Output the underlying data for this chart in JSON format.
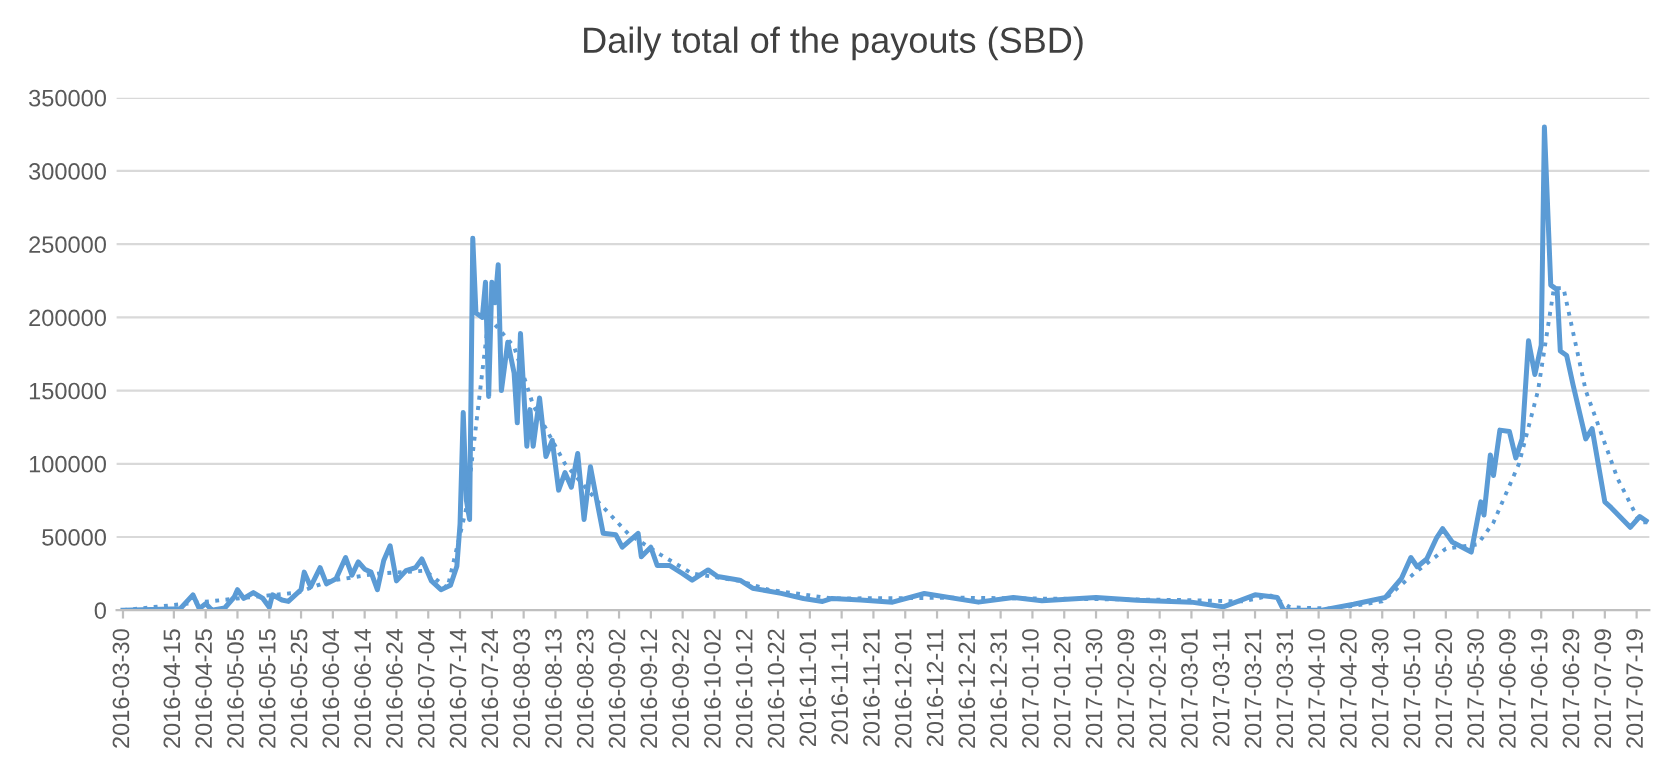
{
  "chart_data": {
    "type": "line",
    "title": "Daily total of the payouts (SBD)",
    "xlim": [
      "2016-03-28",
      "2017-07-23"
    ],
    "ylim": [
      0,
      350000
    ],
    "yticks": [
      0,
      50000,
      100000,
      150000,
      200000,
      250000,
      300000,
      350000
    ],
    "xticks": [
      "2016-03-30",
      "2016-04-15",
      "2016-04-25",
      "2016-05-05",
      "2016-05-15",
      "2016-05-25",
      "2016-06-04",
      "2016-06-14",
      "2016-06-24",
      "2016-07-04",
      "2016-07-14",
      "2016-07-24",
      "2016-08-03",
      "2016-08-13",
      "2016-08-23",
      "2016-09-02",
      "2016-09-12",
      "2016-09-22",
      "2016-10-02",
      "2016-10-12",
      "2016-10-22",
      "2016-11-01",
      "2016-11-11",
      "2016-11-21",
      "2016-12-01",
      "2016-12-11",
      "2016-12-21",
      "2016-12-31",
      "2017-01-10",
      "2017-01-20",
      "2017-01-30",
      "2017-02-09",
      "2017-02-19",
      "2017-03-01",
      "2017-03-11",
      "2017-03-21",
      "2017-03-31",
      "2017-04-10",
      "2017-04-20",
      "2017-04-30",
      "2017-05-10",
      "2017-05-20",
      "2017-05-30",
      "2017-06-09",
      "2017-06-19",
      "2017-06-29",
      "2017-07-09",
      "2017-07-19"
    ],
    "grid": "y",
    "legend": false,
    "series": [
      {
        "color": "#5b9bd5",
        "line_style": "solid",
        "x": [
          "2016-03-30",
          "2016-04-17",
          "2016-04-21",
          "2016-04-23",
          "2016-04-25",
          "2016-04-27",
          "2016-05-01",
          "2016-05-04",
          "2016-05-05",
          "2016-05-07",
          "2016-05-10",
          "2016-05-13",
          "2016-05-15",
          "2016-05-16",
          "2016-05-19",
          "2016-05-21",
          "2016-05-25",
          "2016-05-26",
          "2016-05-28",
          "2016-05-31",
          "2016-06-02",
          "2016-06-05",
          "2016-06-08",
          "2016-06-10",
          "2016-06-12",
          "2016-06-14",
          "2016-06-16",
          "2016-06-18",
          "2016-06-20",
          "2016-06-22",
          "2016-06-24",
          "2016-06-27",
          "2016-06-30",
          "2016-07-02",
          "2016-07-05",
          "2016-07-08",
          "2016-07-11",
          "2016-07-13",
          "2016-07-14",
          "2016-07-15",
          "2016-07-16",
          "2016-07-17",
          "2016-07-18",
          "2016-07-19",
          "2016-07-21",
          "2016-07-22",
          "2016-07-23",
          "2016-07-24",
          "2016-07-25",
          "2016-07-26",
          "2016-07-27",
          "2016-07-29",
          "2016-07-31",
          "2016-08-01",
          "2016-08-02",
          "2016-08-04",
          "2016-08-05",
          "2016-08-06",
          "2016-08-08",
          "2016-08-10",
          "2016-08-12",
          "2016-08-14",
          "2016-08-16",
          "2016-08-18",
          "2016-08-20",
          "2016-08-22",
          "2016-08-24",
          "2016-08-26",
          "2016-08-28",
          "2016-09-01",
          "2016-09-03",
          "2016-09-08",
          "2016-09-09",
          "2016-09-12",
          "2016-09-14",
          "2016-09-18",
          "2016-09-22",
          "2016-09-25",
          "2016-09-30",
          "2016-10-03",
          "2016-10-10",
          "2016-10-14",
          "2016-10-18",
          "2016-10-23",
          "2016-10-30",
          "2016-11-05",
          "2016-11-08",
          "2016-11-17",
          "2016-11-27",
          "2016-12-07",
          "2016-12-24",
          "2017-01-04",
          "2017-01-13",
          "2017-01-30",
          "2017-02-12",
          "2017-03-01",
          "2017-03-11",
          "2017-03-21",
          "2017-03-28",
          "2017-03-30",
          "2017-04-11",
          "2017-04-21",
          "2017-05-01",
          "2017-05-06",
          "2017-05-09",
          "2017-05-11",
          "2017-05-14",
          "2017-05-17",
          "2017-05-19",
          "2017-05-22",
          "2017-05-28",
          "2017-05-31",
          "2017-06-01",
          "2017-06-03",
          "2017-06-04",
          "2017-06-06",
          "2017-06-09",
          "2017-06-11",
          "2017-06-13",
          "2017-06-15",
          "2017-06-17",
          "2017-06-19",
          "2017-06-20",
          "2017-06-22",
          "2017-06-24",
          "2017-06-25",
          "2017-06-27",
          "2017-06-29",
          "2017-07-03",
          "2017-07-05",
          "2017-07-07",
          "2017-07-09",
          "2017-07-11",
          "2017-07-17",
          "2017-07-20",
          "2017-07-22"
        ],
        "values": [
          0,
          1000,
          10500,
          1000,
          4500,
          0,
          1500,
          9000,
          14000,
          8000,
          12000,
          8000,
          2000,
          10500,
          7000,
          6000,
          14000,
          26000,
          16000,
          29000,
          18000,
          21500,
          36000,
          24000,
          33000,
          28000,
          26000,
          14000,
          34000,
          44000,
          20000,
          27000,
          29000,
          35000,
          20000,
          14000,
          17000,
          30000,
          59000,
          135000,
          75000,
          62000,
          254000,
          203000,
          200000,
          224000,
          146000,
          224000,
          210000,
          236000,
          150000,
          183000,
          162000,
          128000,
          189000,
          112000,
          137000,
          112000,
          145000,
          105000,
          116000,
          82000,
          94000,
          84000,
          107000,
          62000,
          98000,
          75000,
          52500,
          51500,
          43000,
          52500,
          36500,
          43000,
          30500,
          30500,
          25000,
          20500,
          27500,
          23000,
          20500,
          15000,
          13500,
          11500,
          8000,
          6000,
          8000,
          7000,
          5500,
          11400,
          5500,
          8700,
          6400,
          8700,
          6800,
          5500,
          2300,
          10500,
          8700,
          0,
          0,
          4100,
          8700,
          21500,
          36000,
          29700,
          35000,
          49000,
          55700,
          46600,
          39700,
          74000,
          65000,
          106000,
          92000,
          123000,
          122000,
          104000,
          117000,
          184000,
          161000,
          181000,
          330000,
          222000,
          219000,
          177000,
          174000,
          154000,
          117000,
          124000,
          99000,
          74000,
          70000,
          56600,
          64000,
          61000
        ]
      },
      {
        "color": "#5b9bd5",
        "line_style": "dotted",
        "x": [
          "2016-03-30",
          "2016-05-05",
          "2016-05-24",
          "2016-06-03",
          "2016-06-18",
          "2016-07-03",
          "2016-07-10",
          "2016-07-16",
          "2016-07-23",
          "2016-07-31",
          "2016-08-06",
          "2016-08-16",
          "2016-08-26",
          "2016-09-05",
          "2016-09-15",
          "2016-09-25",
          "2016-10-10",
          "2016-10-19",
          "2016-11-08",
          "2016-12-18",
          "2017-02-25",
          "2017-03-17",
          "2017-03-26",
          "2017-04-01",
          "2017-04-15",
          "2017-04-30",
          "2017-05-10",
          "2017-05-20",
          "2017-05-30",
          "2017-06-04",
          "2017-06-12",
          "2017-06-18",
          "2017-06-23",
          "2017-06-26",
          "2017-07-03",
          "2017-07-13",
          "2017-07-20",
          "2017-07-23"
        ],
        "values": [
          0,
          8000,
          12000,
          20000,
          25000,
          27000,
          15000,
          70000,
          200000,
          180000,
          140000,
          100000,
          75000,
          52000,
          38000,
          25000,
          20000,
          14000,
          8000,
          8500,
          7000,
          6000,
          10000,
          2000,
          1000,
          6000,
          25000,
          42000,
          45000,
          60000,
          100000,
          150000,
          220000,
          220000,
          150000,
          90000,
          60000,
          60000
        ]
      }
    ]
  }
}
